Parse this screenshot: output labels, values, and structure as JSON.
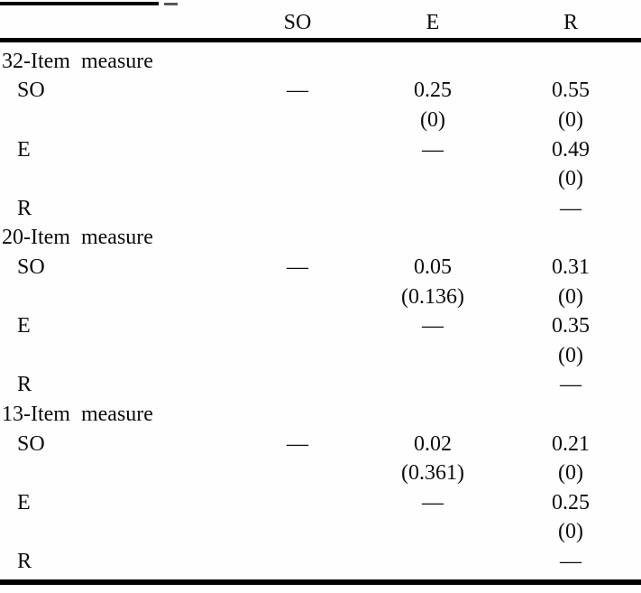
{
  "table": {
    "columns": [
      "SO",
      "E",
      "R"
    ],
    "sections": [
      {
        "label": "32-Item measure",
        "rows": [
          {
            "label": "SO",
            "so": "—",
            "e": "0.25",
            "ep": "(0)",
            "r": "0.55",
            "rp": "(0)"
          },
          {
            "label": "E",
            "e": "—",
            "r": "0.49",
            "rp": "(0)"
          },
          {
            "label": "R",
            "r": "—"
          }
        ]
      },
      {
        "label": "20-Item measure",
        "rows": [
          {
            "label": "SO",
            "so": "—",
            "e": "0.05",
            "ep": "(0.136)",
            "r": "0.31",
            "rp": "(0)"
          },
          {
            "label": "E",
            "e": "—",
            "r": "0.35",
            "rp": "(0)"
          },
          {
            "label": "R",
            "r": "—"
          }
        ]
      },
      {
        "label": "13-Item measure",
        "rows": [
          {
            "label": "SO",
            "so": "—",
            "e": "0.02",
            "ep": "(0.361)",
            "r": "0.21",
            "rp": "(0)"
          },
          {
            "label": "E",
            "e": "—",
            "r": "0.25",
            "rp": "(0)"
          },
          {
            "label": "R",
            "r": "—"
          }
        ]
      }
    ]
  }
}
